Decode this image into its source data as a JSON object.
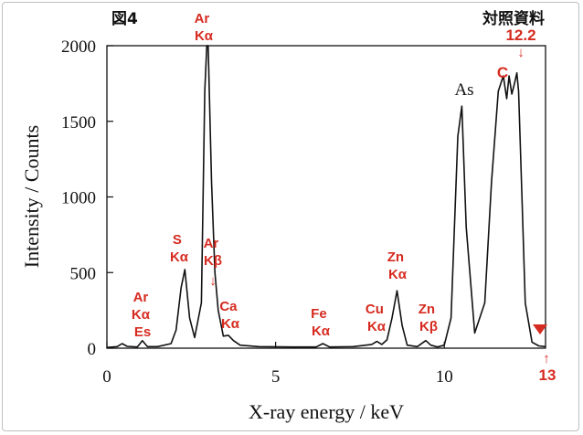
{
  "corner_left": "図4",
  "corner_right": "対照資料",
  "chart_data": {
    "type": "line",
    "xlabel": "X-ray energy / keV",
    "ylabel": "Intensity / Counts",
    "xlim": [
      0,
      13
    ],
    "ylim": [
      0,
      2000
    ],
    "x_ticks": [
      0,
      5,
      10
    ],
    "y_ticks": [
      0,
      500,
      1000,
      1500,
      2000
    ],
    "grid": false,
    "series": [
      {
        "x": [
          0.0,
          0.3,
          0.45,
          0.6,
          0.9,
          1.05,
          1.2,
          1.5,
          1.9,
          2.05,
          2.2,
          2.31,
          2.45,
          2.6,
          2.8,
          2.9,
          2.96,
          3.0,
          3.1,
          3.2,
          3.3,
          3.45,
          3.6,
          3.75,
          3.95,
          4.5,
          5.5,
          6.2,
          6.4,
          6.6,
          7.3,
          7.85,
          8.0,
          8.15,
          8.3,
          8.45,
          8.6,
          8.75,
          8.9,
          9.2,
          9.45,
          9.6,
          9.8,
          10.0,
          10.2,
          10.4,
          10.52,
          10.65,
          10.9,
          11.2,
          11.4,
          11.6,
          11.75,
          11.85,
          11.92,
          12.0,
          12.08,
          12.15,
          12.2,
          12.3,
          12.4,
          12.6,
          12.8,
          13.0
        ],
        "y": [
          5,
          10,
          30,
          12,
          8,
          50,
          10,
          10,
          30,
          120,
          400,
          520,
          200,
          70,
          300,
          1700,
          2000,
          2000,
          1100,
          500,
          250,
          80,
          85,
          50,
          20,
          10,
          8,
          8,
          30,
          8,
          10,
          25,
          45,
          25,
          55,
          200,
          380,
          150,
          20,
          10,
          50,
          20,
          8,
          20,
          200,
          1400,
          1600,
          800,
          100,
          300,
          1100,
          1700,
          1800,
          1650,
          1800,
          1680,
          1750,
          1820,
          1700,
          1000,
          300,
          40,
          15,
          10
        ]
      }
    ],
    "annotations": [
      {
        "text": [
          "Ar",
          "Kα",
          "Es"
        ],
        "x": 1.05
      },
      {
        "text": [
          "S",
          "Kα"
        ],
        "x": 2.31
      },
      {
        "text": [
          "Ar",
          "Kα"
        ],
        "x": 2.96
      },
      {
        "text": [
          "Ar",
          "Kβ"
        ],
        "x": 3.19
      },
      {
        "text": [
          "Ca",
          "Kα"
        ],
        "x": 3.69
      },
      {
        "text": [
          "Fe",
          "Kα"
        ],
        "x": 6.4
      },
      {
        "text": [
          "Cu",
          "Kα"
        ],
        "x": 8.05
      },
      {
        "text": [
          "Zn",
          "Kα"
        ],
        "x": 8.64
      },
      {
        "text": [
          "Zn",
          "Kβ"
        ],
        "x": 9.57
      },
      {
        "text": [
          "As"
        ],
        "x": 10.53
      },
      {
        "text": [
          "C"
        ],
        "x": 11.6
      },
      {
        "text": [
          "12.2"
        ],
        "x": 12.2
      },
      {
        "text": [
          "13"
        ],
        "x": 13.0
      }
    ]
  }
}
